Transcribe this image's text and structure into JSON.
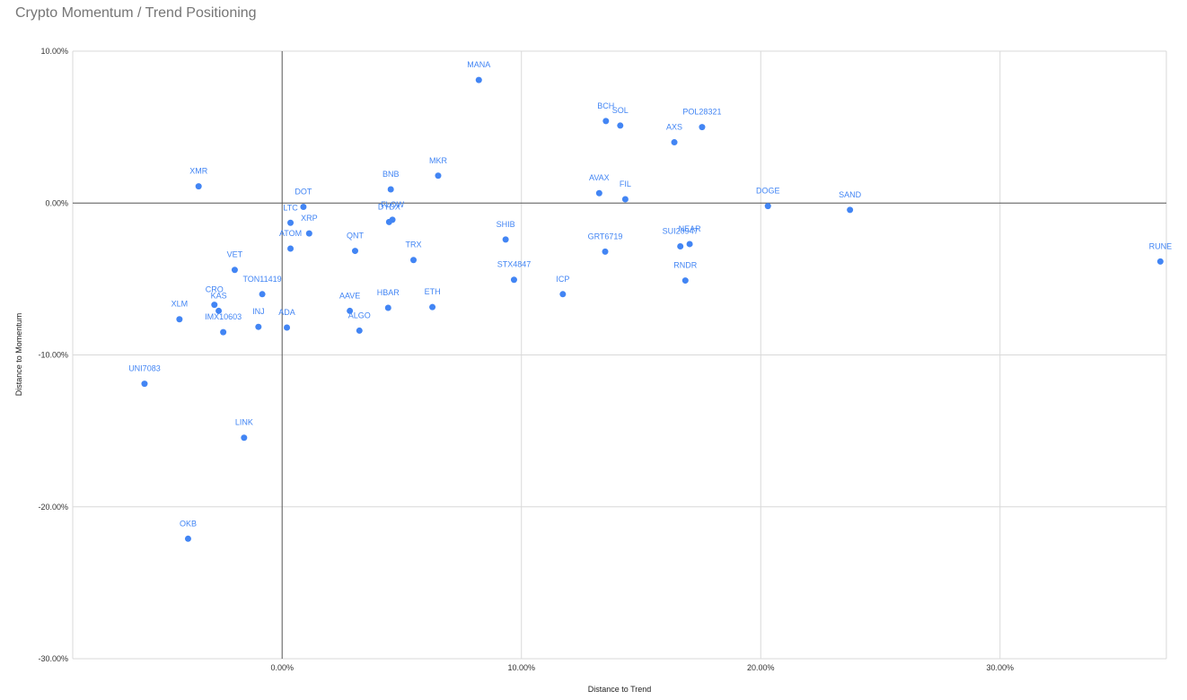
{
  "chart_data": {
    "type": "scatter",
    "title": "Crypto Momentum / Trend Positioning",
    "xlabel": "Distance to Trend",
    "ylabel": "Distance to Momentum",
    "xlim": [
      -0.0875,
      0.3695
    ],
    "ylim": [
      -0.3,
      0.1
    ],
    "xticks": [
      0.0,
      0.1,
      0.2,
      0.3
    ],
    "xtick_labels": [
      "0.00%",
      "10.00%",
      "20.00%",
      "30.00%"
    ],
    "yticks": [
      0.1,
      0.0,
      -0.1,
      -0.2,
      -0.3
    ],
    "ytick_labels": [
      "10.00%",
      "0.00%",
      "-10.00%",
      "-20.00%",
      "-30.00%"
    ],
    "grid": true,
    "legend": "none",
    "series_color": "#4285f4",
    "points": [
      {
        "label": "MANA",
        "x": 0.0822,
        "y": 0.081
      },
      {
        "label": "BCH",
        "x": 0.1353,
        "y": 0.054
      },
      {
        "label": "SOL",
        "x": 0.1413,
        "y": 0.051
      },
      {
        "label": "POL28321",
        "x": 0.1755,
        "y": 0.05
      },
      {
        "label": "AXS",
        "x": 0.1639,
        "y": 0.04
      },
      {
        "label": "XMR",
        "x": -0.0349,
        "y": 0.011
      },
      {
        "label": "MKR",
        "x": 0.0652,
        "y": 0.018
      },
      {
        "label": "BNB",
        "x": 0.0454,
        "y": 0.009
      },
      {
        "label": "AVAX",
        "x": 0.1325,
        "y": 0.0065
      },
      {
        "label": "FIL",
        "x": 0.1434,
        "y": 0.0025
      },
      {
        "label": "DOT",
        "x": 0.0089,
        "y": -0.0025
      },
      {
        "label": "DOGE",
        "x": 0.203,
        "y": -0.002
      },
      {
        "label": "SAND",
        "x": 0.2373,
        "y": -0.0045
      },
      {
        "label": "LTC",
        "x": 0.0035,
        "y": -0.013
      },
      {
        "label": "FLOW",
        "x": 0.0461,
        "y": -0.011
      },
      {
        "label": "DYDX",
        "x": 0.0447,
        "y": -0.0125
      },
      {
        "label": "XRP",
        "x": 0.0113,
        "y": -0.02
      },
      {
        "label": "SHIB",
        "x": 0.0934,
        "y": -0.024
      },
      {
        "label": "ATOM",
        "x": 0.0035,
        "y": -0.03
      },
      {
        "label": "QNT",
        "x": 0.0305,
        "y": -0.0315
      },
      {
        "label": "SUI20947",
        "x": 0.1664,
        "y": -0.0285
      },
      {
        "label": "NEAR",
        "x": 0.1703,
        "y": -0.027
      },
      {
        "label": "GRT6719",
        "x": 0.135,
        "y": -0.032
      },
      {
        "label": "TRX",
        "x": 0.0549,
        "y": -0.0375
      },
      {
        "label": "RUNE",
        "x": 0.367,
        "y": -0.0385
      },
      {
        "label": "VET",
        "x": -0.0198,
        "y": -0.044
      },
      {
        "label": "STX4847",
        "x": 0.0969,
        "y": -0.0505
      },
      {
        "label": "RNDR",
        "x": 0.1685,
        "y": -0.051
      },
      {
        "label": "TON11419",
        "x": -0.0083,
        "y": -0.06
      },
      {
        "label": "ICP",
        "x": 0.1173,
        "y": -0.06
      },
      {
        "label": "CRO",
        "x": -0.0283,
        "y": -0.067
      },
      {
        "label": "KAS",
        "x": -0.0265,
        "y": -0.071
      },
      {
        "label": "AAVE",
        "x": 0.0283,
        "y": -0.071
      },
      {
        "label": "HBAR",
        "x": 0.0443,
        "y": -0.069
      },
      {
        "label": "ETH",
        "x": 0.0628,
        "y": -0.0685
      },
      {
        "label": "XLM",
        "x": -0.0429,
        "y": -0.0765
      },
      {
        "label": "IMX10603",
        "x": -0.0246,
        "y": -0.085
      },
      {
        "label": "INJ",
        "x": -0.0099,
        "y": -0.0815
      },
      {
        "label": "ADA",
        "x": 0.002,
        "y": -0.082
      },
      {
        "label": "ALGO",
        "x": 0.0323,
        "y": -0.084
      },
      {
        "label": "UNI7083",
        "x": -0.0575,
        "y": -0.119
      },
      {
        "label": "LINK",
        "x": -0.0159,
        "y": -0.1545
      },
      {
        "label": "OKB",
        "x": -0.0393,
        "y": -0.221
      }
    ]
  }
}
